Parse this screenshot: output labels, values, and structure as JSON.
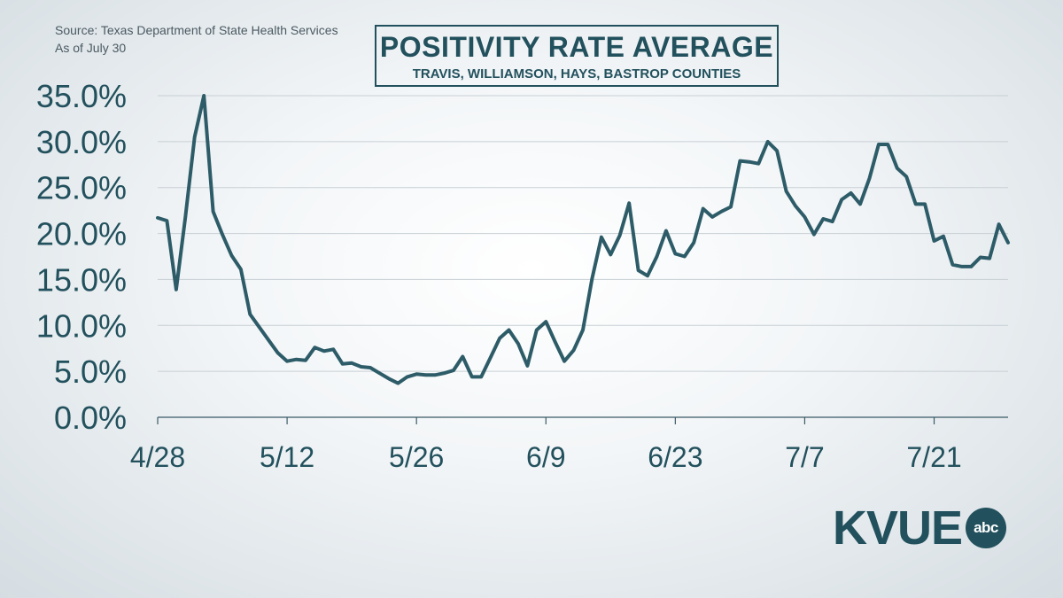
{
  "source": {
    "line1": "Source: Texas Department of State Health Services",
    "line2": "As of July 30"
  },
  "logo": {
    "text": "KVUE",
    "badge": "abc"
  },
  "colors": {
    "line": "#2d5c68",
    "text": "#22515d",
    "grid": "#c8d0d5"
  },
  "chart_data": {
    "type": "line",
    "title": "POSITIVITY RATE AVERAGE",
    "subtitle": "TRAVIS, WILLIAMSON, HAYS, BASTROP COUNTIES",
    "xlabel": "",
    "ylabel": "",
    "ylim": [
      0,
      35
    ],
    "yticks": [
      "0.0%",
      "5.0%",
      "10.0%",
      "15.0%",
      "20.0%",
      "25.0%",
      "30.0%",
      "35.0%"
    ],
    "xticks": [
      "4/28",
      "5/12",
      "5/26",
      "6/9",
      "6/23",
      "7/7",
      "7/21"
    ],
    "grid": true,
    "legend": "none",
    "x_start": "4/28",
    "x_end": "7/30",
    "values": [
      21.7,
      21.4,
      13.9,
      21.8,
      30.5,
      35.0,
      22.4,
      19.9,
      17.6,
      16.1,
      11.2,
      9.8,
      8.4,
      7.0,
      6.1,
      6.3,
      6.2,
      7.6,
      7.2,
      7.4,
      5.8,
      5.9,
      5.5,
      5.4,
      4.8,
      4.2,
      3.7,
      4.4,
      4.7,
      4.6,
      4.6,
      4.8,
      5.1,
      6.6,
      4.4,
      4.4,
      6.5,
      8.6,
      9.5,
      8.0,
      5.6,
      9.5,
      10.4,
      8.2,
      6.1,
      7.3,
      9.5,
      15.1,
      19.6,
      17.7,
      19.8,
      23.3,
      16.0,
      15.4,
      17.5,
      20.3,
      17.8,
      17.5,
      19.0,
      22.7,
      21.8,
      22.4,
      22.9,
      27.9,
      27.8,
      27.6,
      30.0,
      29.0,
      24.6,
      23.0,
      21.8,
      19.9,
      21.6,
      21.3,
      23.7,
      24.4,
      23.2,
      26.0,
      29.7,
      29.7,
      27.1,
      26.2,
      23.2,
      23.2,
      19.2,
      19.7,
      16.6,
      16.4,
      16.4,
      17.4,
      17.3,
      21.0,
      19.0
    ]
  }
}
